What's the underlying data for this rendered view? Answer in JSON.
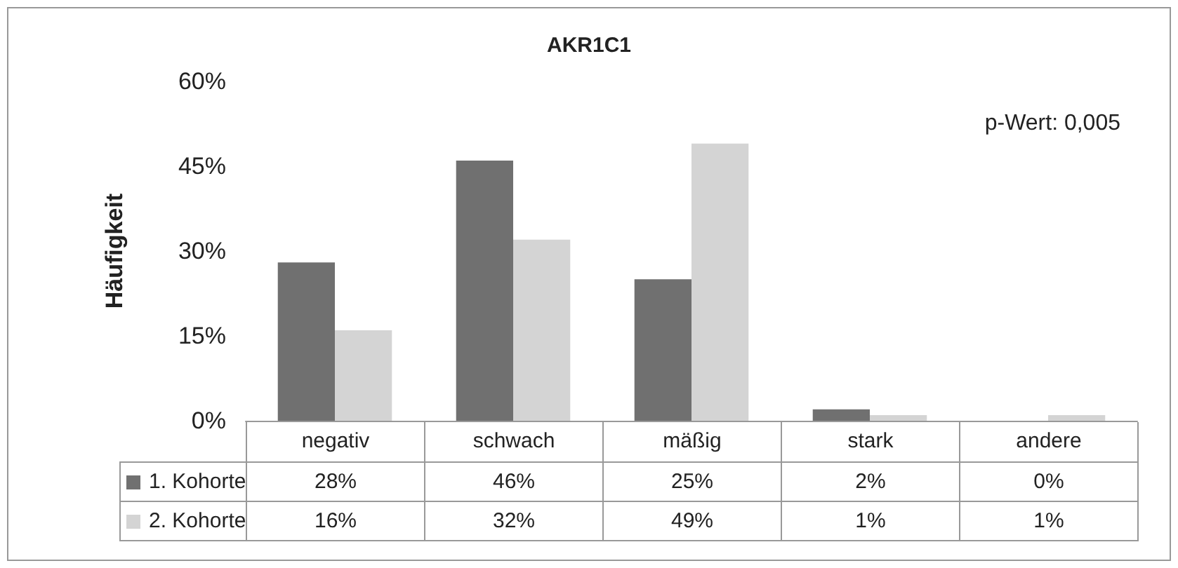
{
  "chart_data": {
    "type": "bar",
    "title": "AKR1C1",
    "ylabel": "Häufigkeit",
    "annotations": [
      "p-Wert: 0,005"
    ],
    "categories": [
      "negativ",
      "schwach",
      "mäßig",
      "stark",
      "andere"
    ],
    "series": [
      {
        "name": "1. Kohorte",
        "color": "#707070",
        "values": [
          28,
          46,
          25,
          2,
          0
        ],
        "value_labels": [
          "28%",
          "46%",
          "25%",
          "2%",
          "0%"
        ]
      },
      {
        "name": "2. Kohorte",
        "color": "#d4d4d4",
        "values": [
          16,
          32,
          49,
          1,
          1
        ],
        "value_labels": [
          "16%",
          "32%",
          "49%",
          "1%",
          "1%"
        ]
      }
    ],
    "ylim": [
      0,
      60
    ],
    "yticks": [
      {
        "value": 0,
        "label": "0%"
      },
      {
        "value": 15,
        "label": "15%"
      },
      {
        "value": 30,
        "label": "30%"
      },
      {
        "value": 45,
        "label": "45%"
      },
      {
        "value": 60,
        "label": "60%"
      }
    ],
    "grid": false,
    "legend": "bottom"
  }
}
